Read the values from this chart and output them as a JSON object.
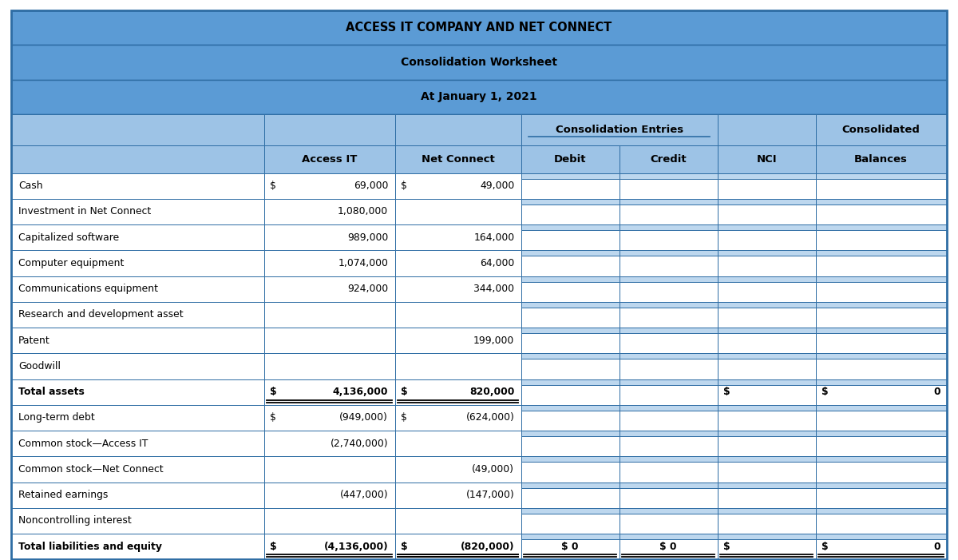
{
  "title1": "ACCESS IT COMPANY AND NET CONNECT",
  "title2": "Consolidation Worksheet",
  "title3": "At January 1, 2021",
  "header_bg": "#5b9bd5",
  "subheader_bg": "#9dc3e6",
  "white": "#ffffff",
  "cell_blue": "#bdd7ee",
  "border_dark": "#2e6da4",
  "border_light": "#808080",
  "rows": [
    {
      "label": "Cash",
      "access_it_dollar": "$",
      "access_it_val": "69,000",
      "net_dollar": "$",
      "net_val": "49,000",
      "debit": "",
      "credit": "",
      "nci": "",
      "balances": "",
      "bold": false,
      "total": false
    },
    {
      "label": "Investment in Net Connect",
      "access_it_dollar": "",
      "access_it_val": "1,080,000",
      "net_dollar": "",
      "net_val": "",
      "debit": "",
      "credit": "",
      "nci": "",
      "balances": "",
      "bold": false,
      "total": false
    },
    {
      "label": "Capitalized software",
      "access_it_dollar": "",
      "access_it_val": "989,000",
      "net_dollar": "",
      "net_val": "164,000",
      "debit": "",
      "credit": "",
      "nci": "",
      "balances": "",
      "bold": false,
      "total": false
    },
    {
      "label": "Computer equipment",
      "access_it_dollar": "",
      "access_it_val": "1,074,000",
      "net_dollar": "",
      "net_val": "64,000",
      "debit": "",
      "credit": "",
      "nci": "",
      "balances": "",
      "bold": false,
      "total": false
    },
    {
      "label": "Communications equipment",
      "access_it_dollar": "",
      "access_it_val": "924,000",
      "net_dollar": "",
      "net_val": "344,000",
      "debit": "",
      "credit": "",
      "nci": "",
      "balances": "",
      "bold": false,
      "total": false
    },
    {
      "label": "Research and development asset",
      "access_it_dollar": "",
      "access_it_val": "",
      "net_dollar": "",
      "net_val": "",
      "debit": "",
      "credit": "",
      "nci": "",
      "balances": "",
      "bold": false,
      "total": false
    },
    {
      "label": "Patent",
      "access_it_dollar": "",
      "access_it_val": "",
      "net_dollar": "",
      "net_val": "199,000",
      "debit": "",
      "credit": "",
      "nci": "",
      "balances": "",
      "bold": false,
      "total": false
    },
    {
      "label": "Goodwill",
      "access_it_dollar": "",
      "access_it_val": "",
      "net_dollar": "",
      "net_val": "",
      "debit": "",
      "credit": "",
      "nci": "",
      "balances": "",
      "bold": false,
      "total": false
    },
    {
      "label": "Total assets",
      "access_it_dollar": "$",
      "access_it_val": "4,136,000",
      "net_dollar": "$",
      "net_val": "820,000",
      "debit": "",
      "credit": "",
      "nci": "$",
      "balances": "0",
      "bold": true,
      "total": true
    },
    {
      "label": "Long-term debt",
      "access_it_dollar": "$",
      "access_it_val": "(949,000)",
      "net_dollar": "$",
      "net_val": "(624,000)",
      "debit": "",
      "credit": "",
      "nci": "",
      "balances": "",
      "bold": false,
      "total": false
    },
    {
      "label": "Common stock—Access IT",
      "access_it_dollar": "",
      "access_it_val": "(2,740,000)",
      "net_dollar": "",
      "net_val": "",
      "debit": "",
      "credit": "",
      "nci": "",
      "balances": "",
      "bold": false,
      "total": false
    },
    {
      "label": "Common stock—Net Connect",
      "access_it_dollar": "",
      "access_it_val": "",
      "net_dollar": "",
      "net_val": "(49,000)",
      "debit": "",
      "credit": "",
      "nci": "",
      "balances": "",
      "bold": false,
      "total": false
    },
    {
      "label": "Retained earnings",
      "access_it_dollar": "",
      "access_it_val": "(447,000)",
      "net_dollar": "",
      "net_val": "(147,000)",
      "debit": "",
      "credit": "",
      "nci": "",
      "balances": "",
      "bold": false,
      "total": false
    },
    {
      "label": "Noncontrolling interest",
      "access_it_dollar": "",
      "access_it_val": "",
      "net_dollar": "",
      "net_val": "",
      "debit": "",
      "credit": "",
      "nci": "",
      "balances": "",
      "bold": false,
      "total": false
    },
    {
      "label": "Total liabilities and equity",
      "access_it_dollar": "$",
      "access_it_val": "(4,136,000)",
      "net_dollar": "$",
      "net_val": "(820,000)",
      "debit": "$ 0",
      "credit": "$ 0",
      "nci": "$",
      "balances": "0",
      "bold": true,
      "total": true
    }
  ],
  "figsize": [
    12.0,
    7.01
  ],
  "dpi": 100
}
